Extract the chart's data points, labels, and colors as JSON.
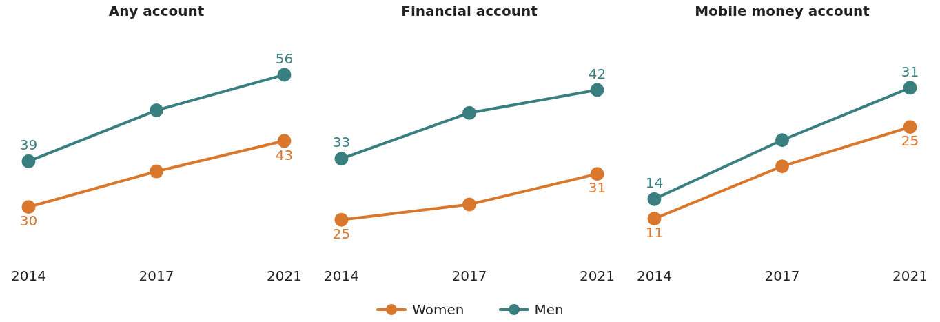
{
  "chart_data": [
    {
      "type": "line",
      "title": "Any account",
      "categories": [
        "2014",
        "2017",
        "2021"
      ],
      "tick_labels": "x",
      "grid": false,
      "legend": "bottom",
      "marker": "circle",
      "line_style": "solid",
      "series": [
        {
          "name": "Women",
          "color": "#d9782d",
          "values": [
            30,
            37,
            43
          ],
          "value_labels": [
            "30",
            null,
            "43"
          ]
        },
        {
          "name": "Men",
          "color": "#3a7f7f",
          "values": [
            39,
            49,
            56
          ],
          "value_labels": [
            "39",
            null,
            "56"
          ]
        }
      ]
    },
    {
      "type": "line",
      "title": "Financial account",
      "categories": [
        "2014",
        "2017",
        "2021"
      ],
      "tick_labels": "x",
      "grid": false,
      "legend": "bottom",
      "marker": "circle",
      "line_style": "solid",
      "series": [
        {
          "name": "Women",
          "color": "#d9782d",
          "values": [
            25,
            27,
            31
          ],
          "value_labels": [
            "25",
            null,
            "31"
          ]
        },
        {
          "name": "Men",
          "color": "#3a7f7f",
          "values": [
            33,
            39,
            42
          ],
          "value_labels": [
            "33",
            null,
            "42"
          ]
        }
      ]
    },
    {
      "type": "line",
      "title": "Mobile money account",
      "categories": [
        "2014",
        "2017",
        "2021"
      ],
      "tick_labels": "x",
      "grid": false,
      "legend": "bottom",
      "marker": "circle",
      "line_style": "solid",
      "series": [
        {
          "name": "Women",
          "color": "#d9782d",
          "values": [
            11,
            19,
            25
          ],
          "value_labels": [
            "11",
            null,
            "25"
          ]
        },
        {
          "name": "Men",
          "color": "#3a7f7f",
          "values": [
            14,
            23,
            31
          ],
          "value_labels": [
            "14",
            null,
            "31"
          ]
        }
      ]
    }
  ]
}
